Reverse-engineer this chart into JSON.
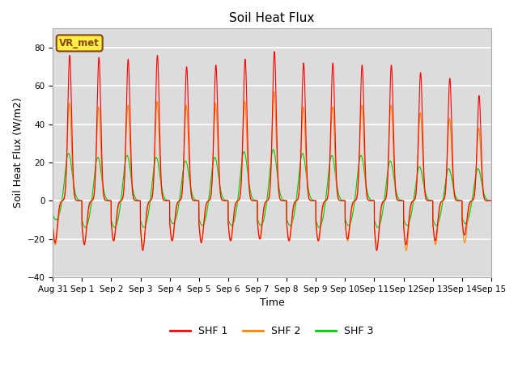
{
  "title": "Soil Heat Flux",
  "xlabel": "Time",
  "ylabel": "Soil Heat Flux (W/m2)",
  "ylim": [
    -40,
    90
  ],
  "yticks": [
    -40,
    -20,
    0,
    20,
    40,
    60,
    80
  ],
  "bg_color": "#dcdcdc",
  "fig_color": "#ffffff",
  "grid_color": "#ffffff",
  "annotation_text": "VR_met",
  "annotation_bg": "#ffee44",
  "annotation_border": "#8B4513",
  "line_colors": {
    "SHF 1": "#ff0000",
    "SHF 2": "#ff8800",
    "SHF 3": "#00cc00"
  },
  "legend_labels": [
    "SHF 1",
    "SHF 2",
    "SHF 3"
  ],
  "xtick_labels": [
    "Aug 31",
    "Sep 1",
    "Sep 2",
    "Sep 3",
    "Sep 4",
    "Sep 5",
    "Sep 6",
    "Sep 7",
    "Sep 8",
    "Sep 9",
    "Sep 10",
    "Sep 11",
    "Sep 12",
    "Sep 13",
    "Sep 14",
    "Sep 15"
  ],
  "n_days": 15,
  "samples_per_day": 288,
  "shf1_peaks": [
    76,
    75,
    74,
    76,
    70,
    71,
    74,
    78,
    72,
    72,
    71,
    71,
    67,
    64,
    55
  ],
  "shf2_peaks": [
    51,
    49,
    50,
    52,
    50,
    51,
    52,
    57,
    49,
    49,
    50,
    50,
    46,
    43,
    38
  ],
  "shf3_peaks": [
    25,
    23,
    24,
    23,
    21,
    23,
    26,
    27,
    25,
    24,
    24,
    21,
    18,
    17,
    17
  ],
  "shf1_mins": [
    -22,
    -23,
    -21,
    -26,
    -21,
    -22,
    -21,
    -20,
    -21,
    -21,
    -20,
    -26,
    -23,
    -21,
    -18
  ],
  "shf2_mins": [
    -23,
    -22,
    -21,
    -24,
    -21,
    -21,
    -21,
    -20,
    -21,
    -21,
    -21,
    -24,
    -26,
    -23,
    -22
  ],
  "shf3_mins": [
    -10,
    -14,
    -14,
    -14,
    -12,
    -13,
    -13,
    -13,
    -13,
    -14,
    -13,
    -14,
    -13,
    -13,
    -12
  ]
}
